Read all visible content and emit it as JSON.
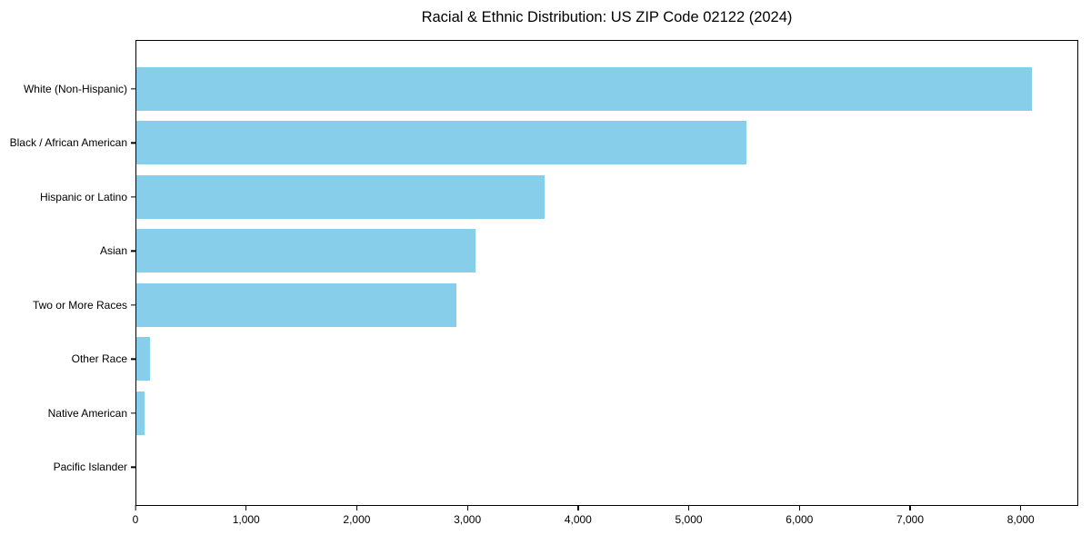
{
  "chart_data": {
    "type": "bar",
    "orientation": "horizontal",
    "title": "Racial & Ethnic Distribution: US ZIP Code 02122 (2024)",
    "categories": [
      "White (Non-Hispanic)",
      "Black / African American",
      "Hispanic or Latino",
      "Asian",
      "Two or More Races",
      "Other Race",
      "Native American",
      "Pacific Islander"
    ],
    "values": [
      8110,
      5520,
      3700,
      3070,
      2900,
      120,
      75,
      0
    ],
    "bar_color": "#87CEEB",
    "xlabel": "",
    "ylabel": "",
    "xlim": [
      0,
      8520
    ],
    "xtick_values": [
      0,
      1000,
      2000,
      3000,
      4000,
      5000,
      6000,
      7000,
      8000
    ],
    "xtick_labels": [
      "0",
      "1,000",
      "2,000",
      "3,000",
      "4,000",
      "5,000",
      "6,000",
      "7,000",
      "8,000"
    ],
    "grid": false,
    "legend": null,
    "plot_border": "#000000",
    "background": "#ffffff"
  }
}
